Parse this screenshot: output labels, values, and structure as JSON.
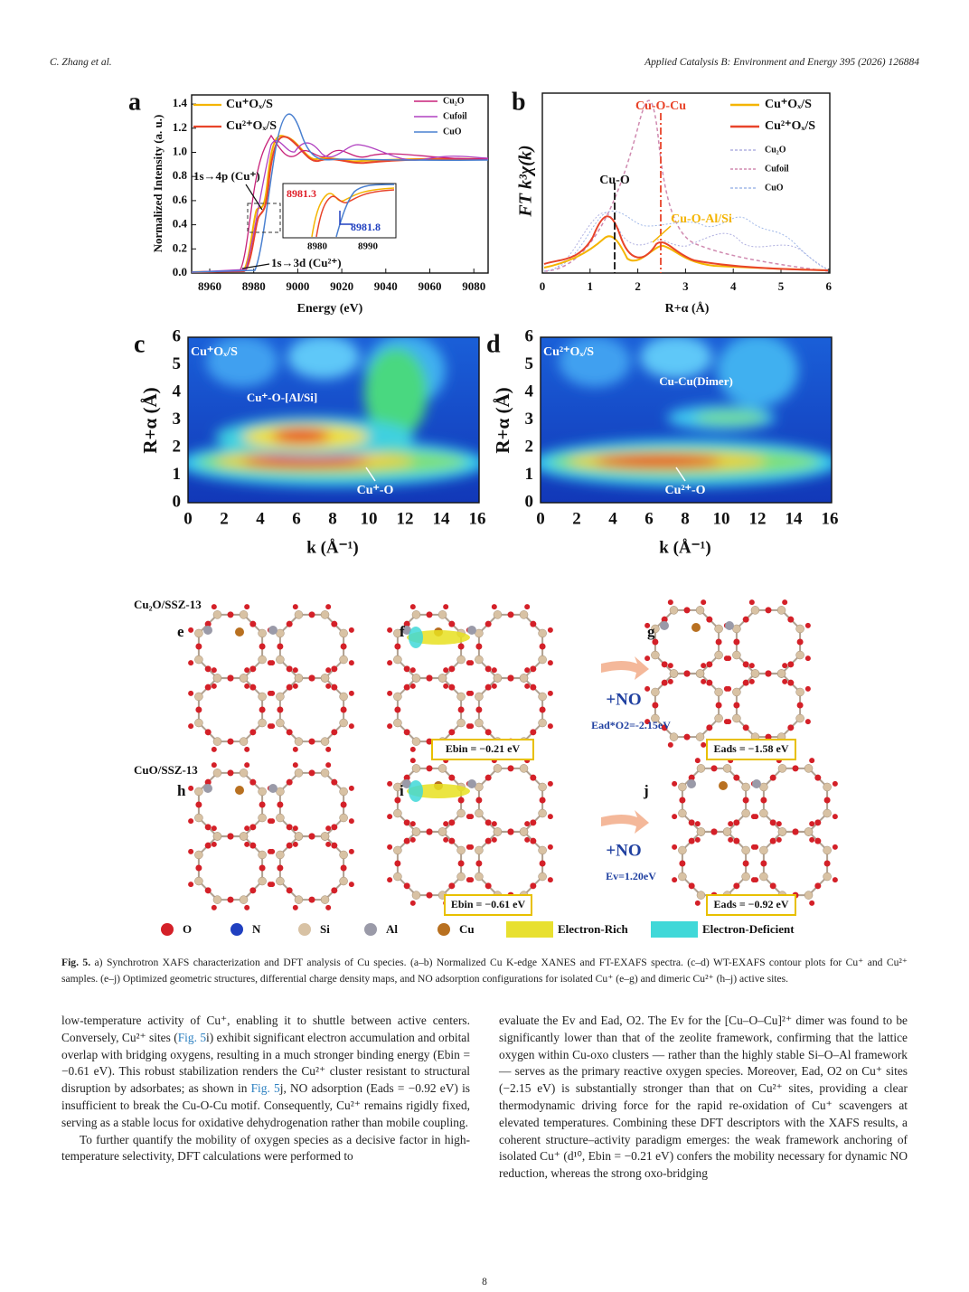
{
  "header": {
    "authors": "C. Zhang et al.",
    "journal": "Applied Catalysis B: Environment and Energy 395 (2026) 126884"
  },
  "figure": {
    "panel_a": {
      "label": "a",
      "y_label": "Normalized Intensity (a. u.)",
      "x_label": "Energy (eV)",
      "xticks": [
        "8960",
        "8980",
        "9000",
        "9020",
        "9040",
        "9060",
        "9080"
      ],
      "yticks": [
        "0.0",
        "0.2",
        "0.4",
        "0.6",
        "0.8",
        "1.0",
        "1.2",
        "1.4"
      ],
      "legend_main": [
        "Cu⁺Oₓ/S",
        "Cu²⁺Oₓ/S"
      ],
      "legend_ref": [
        "Cu₂O",
        "Cufoil",
        "CuO"
      ],
      "annotation_4p": "1s→4p (Cu⁺)",
      "annotation_3d": "1s→3d (Cu²⁺)",
      "inset": {
        "edge_1": "8981.3",
        "edge_2": "8981.8",
        "xticks": [
          "8980",
          "8990"
        ]
      }
    },
    "panel_b": {
      "label": "b",
      "y_label": "FT k³χ(k)",
      "x_label": "R+α (Å)",
      "xticks": [
        "0",
        "1",
        "2",
        "3",
        "4",
        "5",
        "6"
      ],
      "legend_main": [
        "Cu⁺Oₓ/S",
        "Cu²⁺Oₓ/S"
      ],
      "legend_ref": [
        "Cu₂O",
        "Cufoil",
        "CuO"
      ],
      "annotations": [
        "Cu-O-Cu",
        "Cu-O",
        "Cu-O-Al/Si"
      ]
    },
    "panel_c": {
      "label": "c",
      "y_label": "R+α (Å)",
      "x_label": "k (Å⁻¹)",
      "xticks": [
        "0",
        "2",
        "4",
        "6",
        "8",
        "10",
        "12",
        "14",
        "16"
      ],
      "yticks": [
        "0",
        "1",
        "2",
        "3",
        "4",
        "5",
        "6"
      ],
      "sample": "Cu⁺Oₓ/S",
      "annotations": [
        "Cu⁺-O-[Al/Si]",
        "Cu⁺-O"
      ]
    },
    "panel_d": {
      "label": "d",
      "y_label": "R+α (Å)",
      "x_label": "k (Å⁻¹)",
      "xticks": [
        "0",
        "2",
        "4",
        "6",
        "8",
        "10",
        "12",
        "14",
        "16"
      ],
      "yticks": [
        "0",
        "1",
        "2",
        "3",
        "4",
        "5",
        "6"
      ],
      "sample": "Cu²⁺Oₓ/S",
      "annotations": [
        "Cu-Cu(Dimer)",
        "Cu²⁺-O"
      ]
    },
    "dft": {
      "row_1": {
        "title": "Cu₂O/SSZ-13",
        "labels": [
          "e",
          "f",
          "g"
        ],
        "reaction": "+NO",
        "energy_note": "Ead*O2=-2.15eV",
        "box_1": "Ebin = −0.21 eV",
        "box_2": "Eads = −1.58 eV"
      },
      "row_2": {
        "title": "CuO/SSZ-13",
        "labels": [
          "h",
          "i",
          "j"
        ],
        "reaction": "+NO",
        "energy_note": "Ev=1.20eV",
        "box_1": "Ebin = −0.61 eV",
        "box_2": "Eads = −0.92 eV"
      },
      "legend": [
        "O",
        "N",
        "Si",
        "Al",
        "Cu",
        "Electron-Rich",
        "Electron-Deficient"
      ]
    }
  },
  "caption": {
    "label": "Fig. 5.",
    "text": "a) Synchrotron XAFS characterization and DFT analysis of Cu species. (a–b) Normalized Cu K-edge XANES and FT-EXAFS spectra. (c–d) WT-EXAFS contour plots for Cu⁺ and Cu²⁺ samples. (e–j) Optimized geometric structures, differential charge density maps, and NO adsorption configurations for isolated Cu⁺ (e–g) and dimeric Cu²⁺ (h–j) active sites."
  },
  "body": {
    "left": [
      [
        "low-temperature activity of Cu⁺, enabling it to shuttle between active centers. Conversely, Cu²⁺ sites (",
        {
          "link": "Fig. 5"
        },
        "i) exhibit significant electron accumulation and orbital overlap with bridging oxygens, resulting in a much stronger binding energy (Ebin = −0.61 eV). This robust stabilization renders the Cu²⁺ cluster resistant to structural disruption by adsorbates; as shown in ",
        {
          "link": "Fig. 5"
        },
        "j, NO adsorption (Eads = −0.92 eV) is insufficient to break the Cu-O-Cu motif. Consequently, Cu²⁺ remains rigidly fixed, serving as a stable locus for oxidative dehydrogenation rather than mobile coupling."
      ],
      [
        "To further quantify the mobility of oxygen species as a decisive factor in high-temperature selectivity, DFT calculations were performed to"
      ]
    ],
    "right": [
      [
        "evaluate the Ev and Ead, O2. The Ev for the [Cu–O–Cu]²⁺ dimer was found to be significantly lower than that of the zeolite framework, confirming that the lattice oxygen within Cu-oxo clusters — rather than the highly stable Si–O–Al framework — serves as the primary reactive oxygen species. Moreover, Ead, O2 on Cu⁺ sites (−2.15 eV) is substantially stronger than that on Cu²⁺ sites, providing a clear thermodynamic driving force for the rapid re-oxidation of Cu⁺ scavengers at elevated temperatures. Combining these DFT descriptors with the XAFS results, a coherent structure–activity paradigm emerges: the weak framework anchoring of isolated Cu⁺ (d¹⁰, Ebin = −0.21 eV) confers the mobility necessary for dynamic NO reduction, whereas the strong oxo-bridging"
      ]
    ]
  },
  "page_number": "8"
}
